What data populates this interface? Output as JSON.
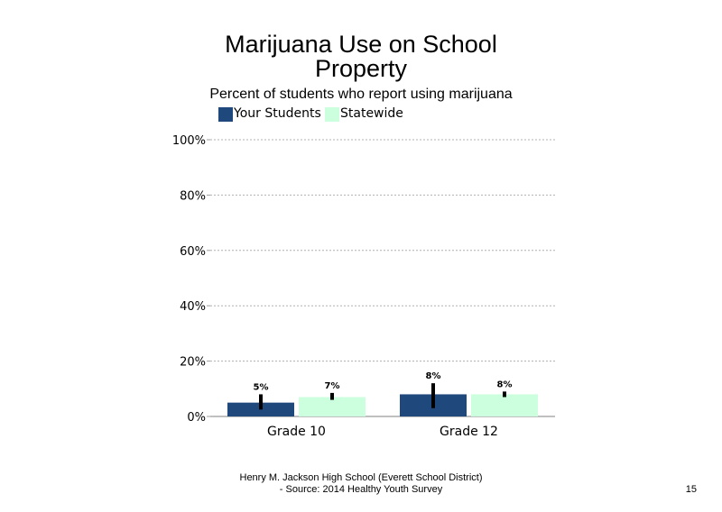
{
  "slide": {
    "footer_line1": "Henry M. Jackson High School (Everett School District)",
    "footer_line2": "- Source: 2014 Healthy  Youth Survey",
    "page_number": "15"
  },
  "chart_data": {
    "type": "bar",
    "title_line1": "Marijuana Use on School",
    "title_line2": "Property",
    "subtitle": "Percent of students who report using marijuana",
    "categories": [
      "Grade 10",
      "Grade 12"
    ],
    "series": [
      {
        "name": "Your Students",
        "color": "#1f497d",
        "values": [
          5,
          8
        ],
        "labels": [
          "5%",
          "8%"
        ],
        "error_low": [
          2.5,
          3
        ],
        "error_high": [
          8,
          12
        ]
      },
      {
        "name": "Statewide",
        "color": "#ccffdd",
        "values": [
          7,
          8
        ],
        "labels": [
          "7%",
          "8%"
        ],
        "error_low": [
          6,
          7
        ],
        "error_high": [
          8.5,
          9
        ]
      }
    ],
    "yticks": [
      "0%",
      "20%",
      "40%",
      "60%",
      "80%",
      "100%"
    ],
    "ylim": [
      0,
      100
    ],
    "grid": true,
    "legend_position": "top"
  }
}
